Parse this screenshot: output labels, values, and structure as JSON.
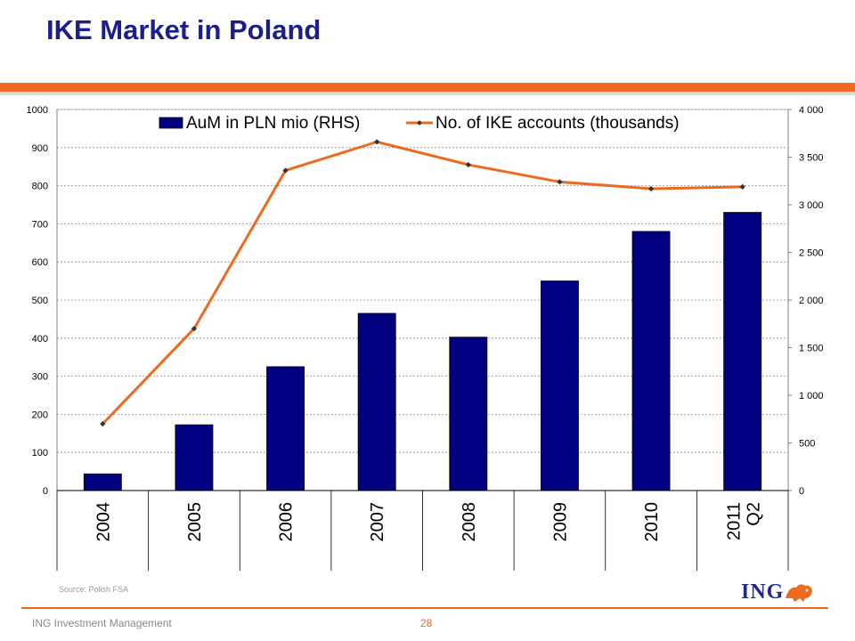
{
  "title": "IKE Market in Poland",
  "source": "Source: Polish FSA",
  "footer": {
    "company": "ING Investment Management",
    "page": "28"
  },
  "logo": {
    "text": "ING",
    "icon": "lion-icon"
  },
  "colors": {
    "accent": "#ee6a1f",
    "title": "#1a1f8c",
    "bar": "#000080",
    "line": "#ee6a1f"
  },
  "chart_data": {
    "type": "bar+line",
    "categories": [
      "2004",
      "2005",
      "2006",
      "2007",
      "2008",
      "2009",
      "2010",
      "Q2 2011"
    ],
    "left_axis": {
      "min": 0,
      "max": 1000,
      "ticks": [
        "0",
        "100",
        "200",
        "300",
        "400",
        "500",
        "600",
        "700",
        "800",
        "900",
        "1000"
      ]
    },
    "right_axis": {
      "min": 0,
      "max": 4000,
      "ticks": [
        "0",
        "500",
        "1 000",
        "1 500",
        "2 000",
        "2 500",
        "3 000",
        "3 500",
        "4 000"
      ]
    },
    "series": [
      {
        "name": "AuM in PLN mio (RHS)",
        "type": "bar",
        "axis": "right",
        "values": [
          175,
          690,
          1300,
          1860,
          1610,
          2200,
          2720,
          2920
        ]
      },
      {
        "name": "No. of IKE accounts (thousands)",
        "type": "line",
        "axis": "left",
        "values": [
          175,
          425,
          840,
          915,
          855,
          810,
          792,
          797
        ]
      }
    ],
    "grid": true,
    "legend": "top"
  }
}
